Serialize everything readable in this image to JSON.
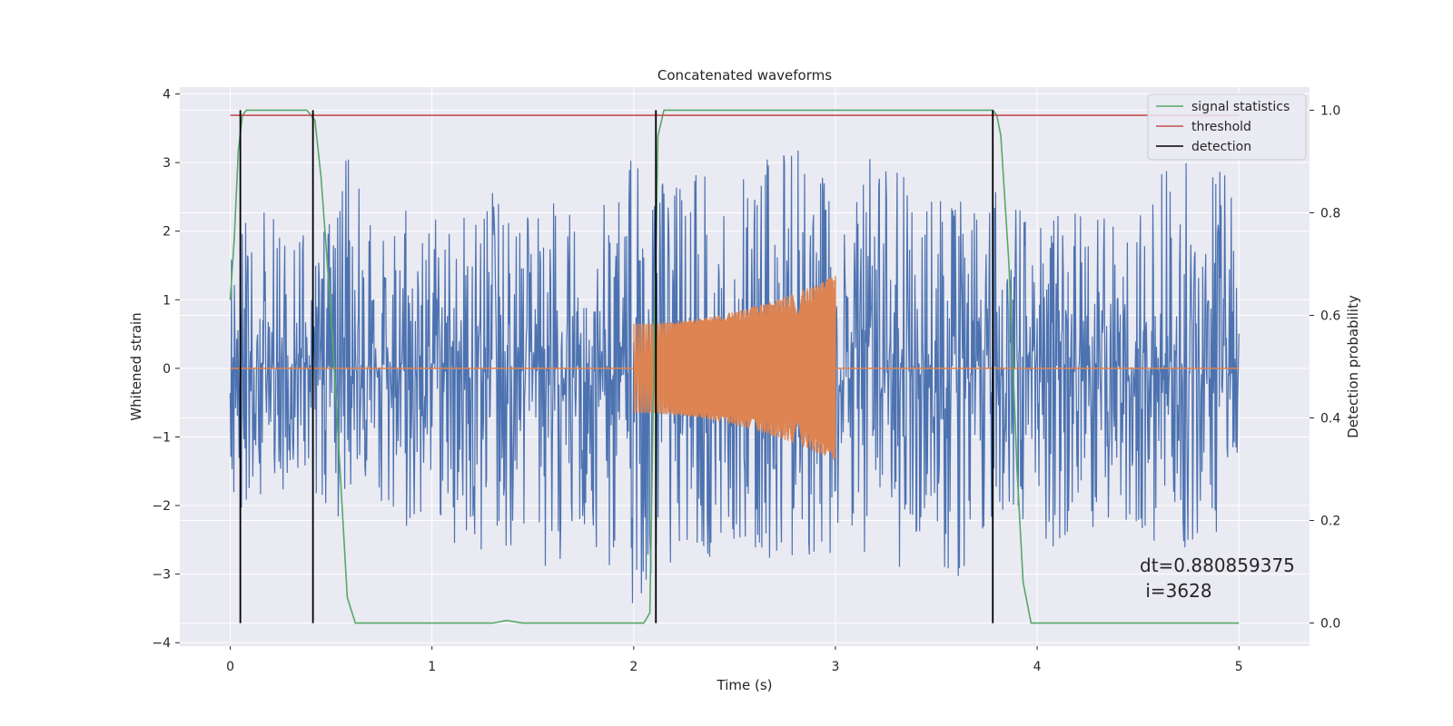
{
  "chart_data": {
    "type": "line",
    "title": "Concatenated waveforms",
    "xlabel": "Time (s)",
    "ylabel": "Whitened strain",
    "y2label": "Detection probability",
    "xlim": [
      -0.25,
      5.35
    ],
    "ylim": [
      -4.05,
      4.1
    ],
    "y2lim": [
      -0.045,
      1.045
    ],
    "xticks": [
      0,
      1,
      2,
      3,
      4,
      5
    ],
    "yticks": [
      -4,
      -3,
      -2,
      -1,
      0,
      1,
      2,
      3,
      4
    ],
    "y2ticks": [
      0.0,
      0.2,
      0.4,
      0.6,
      0.8,
      1.0
    ],
    "y2tick_labels": [
      "0.0",
      "0.2",
      "0.4",
      "0.6",
      "0.8",
      "1.0"
    ],
    "grid": true,
    "legend_position": "top-right",
    "noise_envelope": {
      "x": [
        0.0,
        0.1,
        0.2,
        0.3,
        0.4,
        0.5,
        0.6,
        0.7,
        0.8,
        0.9,
        1.0,
        1.1,
        1.2,
        1.3,
        1.4,
        1.5,
        1.6,
        1.7,
        1.8,
        1.9,
        2.0,
        2.1,
        2.2,
        2.3,
        2.4,
        2.5,
        2.6,
        2.7,
        2.8,
        2.9,
        3.0,
        3.1,
        3.2,
        3.3,
        3.4,
        3.5,
        3.6,
        3.7,
        3.8,
        3.9,
        4.0,
        4.1,
        4.2,
        4.3,
        4.4,
        4.5,
        4.6,
        4.7,
        4.8,
        4.9,
        5.0
      ],
      "upper": [
        1.9,
        2.4,
        2.3,
        2.6,
        2.0,
        2.2,
        3.4,
        2.3,
        2.1,
        2.4,
        2.3,
        2.5,
        2.2,
        2.6,
        2.3,
        2.2,
        2.6,
        2.4,
        2.5,
        2.3,
        3.3,
        3.0,
        2.7,
        2.9,
        2.8,
        3.1,
        2.6,
        3.4,
        3.2,
        3.2,
        2.2,
        2.5,
        3.7,
        3.0,
        2.5,
        2.8,
        2.4,
        3.0,
        2.7,
        2.4,
        2.5,
        2.3,
        2.5,
        2.4,
        2.2,
        2.4,
        2.8,
        3.3,
        2.5,
        3.1,
        2.3
      ],
      "lower": [
        -2.4,
        -2.2,
        -1.7,
        -2.3,
        -1.8,
        -2.3,
        -2.0,
        -2.1,
        -2.6,
        -2.4,
        -2.0,
        -2.8,
        -2.5,
        -3.0,
        -2.6,
        -2.3,
        -3.5,
        -2.4,
        -2.6,
        -3.0,
        -3.5,
        -3.0,
        -2.8,
        -2.5,
        -2.9,
        -2.6,
        -2.7,
        -3.0,
        -2.8,
        -3.0,
        -2.6,
        -2.6,
        -2.8,
        -3.0,
        -2.5,
        -2.7,
        -3.5,
        -2.9,
        -2.3,
        -2.1,
        -2.8,
        -2.7,
        -2.5,
        -2.3,
        -2.4,
        -2.6,
        -2.5,
        -2.6,
        -2.7,
        -2.4,
        -1.2
      ]
    },
    "injected_signal": {
      "start": 2.0,
      "end": 3.0,
      "start_amplitude": 0.65,
      "end_amplitude": 1.35
    },
    "series": [
      {
        "name": "signal statistics",
        "axis": "right",
        "color": "#55a868",
        "x": [
          0.0,
          0.02,
          0.04,
          0.06,
          0.08,
          0.1,
          0.38,
          0.42,
          0.45,
          0.5,
          0.55,
          0.58,
          0.62,
          1.3,
          1.37,
          1.45,
          2.05,
          2.08,
          2.1,
          2.12,
          2.15,
          2.2,
          3.78,
          3.8,
          3.82,
          3.86,
          3.9,
          3.93,
          3.97,
          5.0
        ],
        "y": [
          0.63,
          0.75,
          0.92,
          0.99,
          1.0,
          1.0,
          1.0,
          0.98,
          0.87,
          0.6,
          0.26,
          0.05,
          0.0,
          0.0,
          0.005,
          0.0,
          0.0,
          0.02,
          0.5,
          0.95,
          1.0,
          1.0,
          1.0,
          0.99,
          0.95,
          0.7,
          0.3,
          0.08,
          0.0,
          0.0
        ]
      },
      {
        "name": "threshold",
        "axis": "right",
        "color": "#c44e52",
        "x": [
          0.0,
          5.0
        ],
        "y": [
          0.99,
          0.99
        ]
      }
    ],
    "detections": {
      "name": "detection",
      "color": "#000000",
      "x": [
        0.05,
        0.41,
        2.11,
        3.78
      ]
    },
    "annotation": "dt=0.880859375\n i=3628",
    "annotation_lines": [
      "dt=0.880859375",
      " i=3628"
    ],
    "colors": {
      "noise": "#4c72b0",
      "injection": "#dd8452",
      "background": "#eaeaf2",
      "grid": "#ffffff"
    }
  },
  "legend": [
    {
      "label": "signal statistics",
      "color": "#55a868"
    },
    {
      "label": "threshold",
      "color": "#c44e52"
    },
    {
      "label": "detection",
      "color": "#000000"
    }
  ]
}
